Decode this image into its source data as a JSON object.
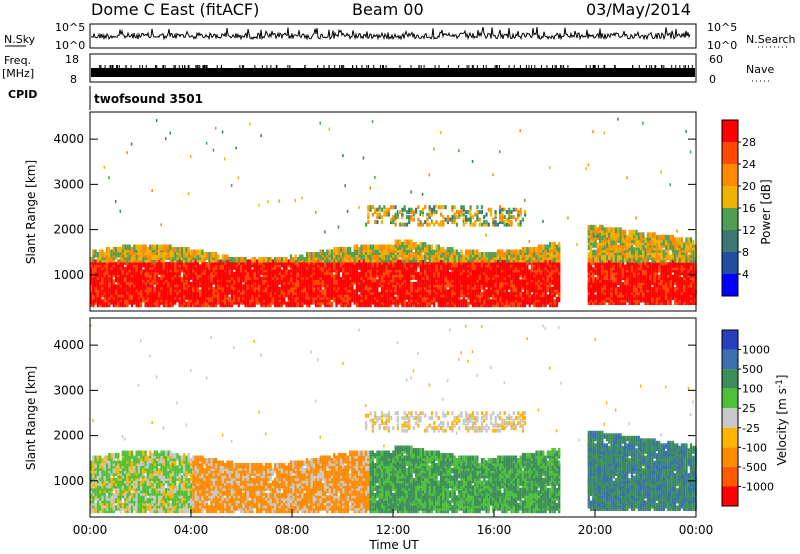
{
  "header": {
    "station": "Dome C East (fitACF)",
    "beam": "Beam 00",
    "date": "03/May/2014"
  },
  "noise_panel": {
    "left_label": "N.Sky",
    "right_label": "N.Search",
    "tick_top": "10^5",
    "tick_bottom": "10^0"
  },
  "freq_panel": {
    "left_label_1": "Freq.",
    "left_label_2": "[MHz]",
    "right_label": "Nave",
    "left_ticks": [
      "18",
      "8"
    ],
    "right_ticks": [
      "60",
      "0"
    ]
  },
  "cpid_panel": {
    "label": "CPID",
    "program": "twofsound 3501"
  },
  "colors": {
    "power_scale": [
      "#0000ff",
      "#1f4fa0",
      "#3a7a72",
      "#4e9f52",
      "#f0b400",
      "#ff8a00",
      "#ff4a00",
      "#ff0000"
    ],
    "velocity_scale": [
      "#ff0000",
      "#ff5a00",
      "#ff8c00",
      "#ffb400",
      "#c8c8c8",
      "#4ec03a",
      "#3d8f5a",
      "#3a6fb0",
      "#2a3fc0"
    ]
  },
  "chart_data": [
    {
      "type": "heatmap",
      "name": "power",
      "ylabel": "Slant Range [km]",
      "ylim": [
        200,
        4600
      ],
      "y_ticks": [
        1000,
        2000,
        3000,
        4000
      ],
      "colorbar_label": "Power [dB]",
      "colorbar_ticks": [
        "4",
        "8",
        "12",
        "16",
        "20",
        "24",
        "28"
      ],
      "colorbar_range": [
        0,
        32
      ],
      "description_bands": [
        {
          "x_start": 0,
          "x_end": 18.5,
          "y_min": 300,
          "y_max": 1600,
          "value": "high"
        },
        {
          "x_start": 11,
          "x_end": 17,
          "y_min": 2100,
          "y_max": 2500,
          "value": "medium"
        },
        {
          "x_start": 19.7,
          "x_end": 24,
          "y_min": 400,
          "y_max": 2200,
          "value": "high"
        }
      ]
    },
    {
      "type": "heatmap",
      "name": "velocity",
      "ylabel": "Slant Range [km]",
      "ylim": [
        200,
        4600
      ],
      "y_ticks": [
        1000,
        2000,
        3000,
        4000
      ],
      "colorbar_label": "Velocity [m s-1]",
      "colorbar_ticks": [
        "1000",
        "500",
        "100",
        "25",
        "-25",
        "-100",
        "-500",
        "-1000"
      ],
      "xlabel": "Time UT",
      "x_ticks": [
        "00:00",
        "04:00",
        "08:00",
        "12:00",
        "16:00",
        "20:00",
        "00:00"
      ],
      "xlim": [
        0,
        24
      ]
    }
  ]
}
